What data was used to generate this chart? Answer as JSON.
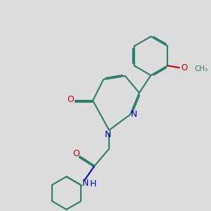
{
  "background_color": "#dcdcdc",
  "bond_color": "#2d7d6e",
  "nitrogen_color": "#0000cc",
  "oxygen_color": "#cc0000",
  "line_width": 1.5,
  "dbo": 0.055,
  "figsize": [
    3.0,
    3.0
  ],
  "dpi": 100,
  "xlim": [
    0,
    10
  ],
  "ylim": [
    0,
    10
  ]
}
